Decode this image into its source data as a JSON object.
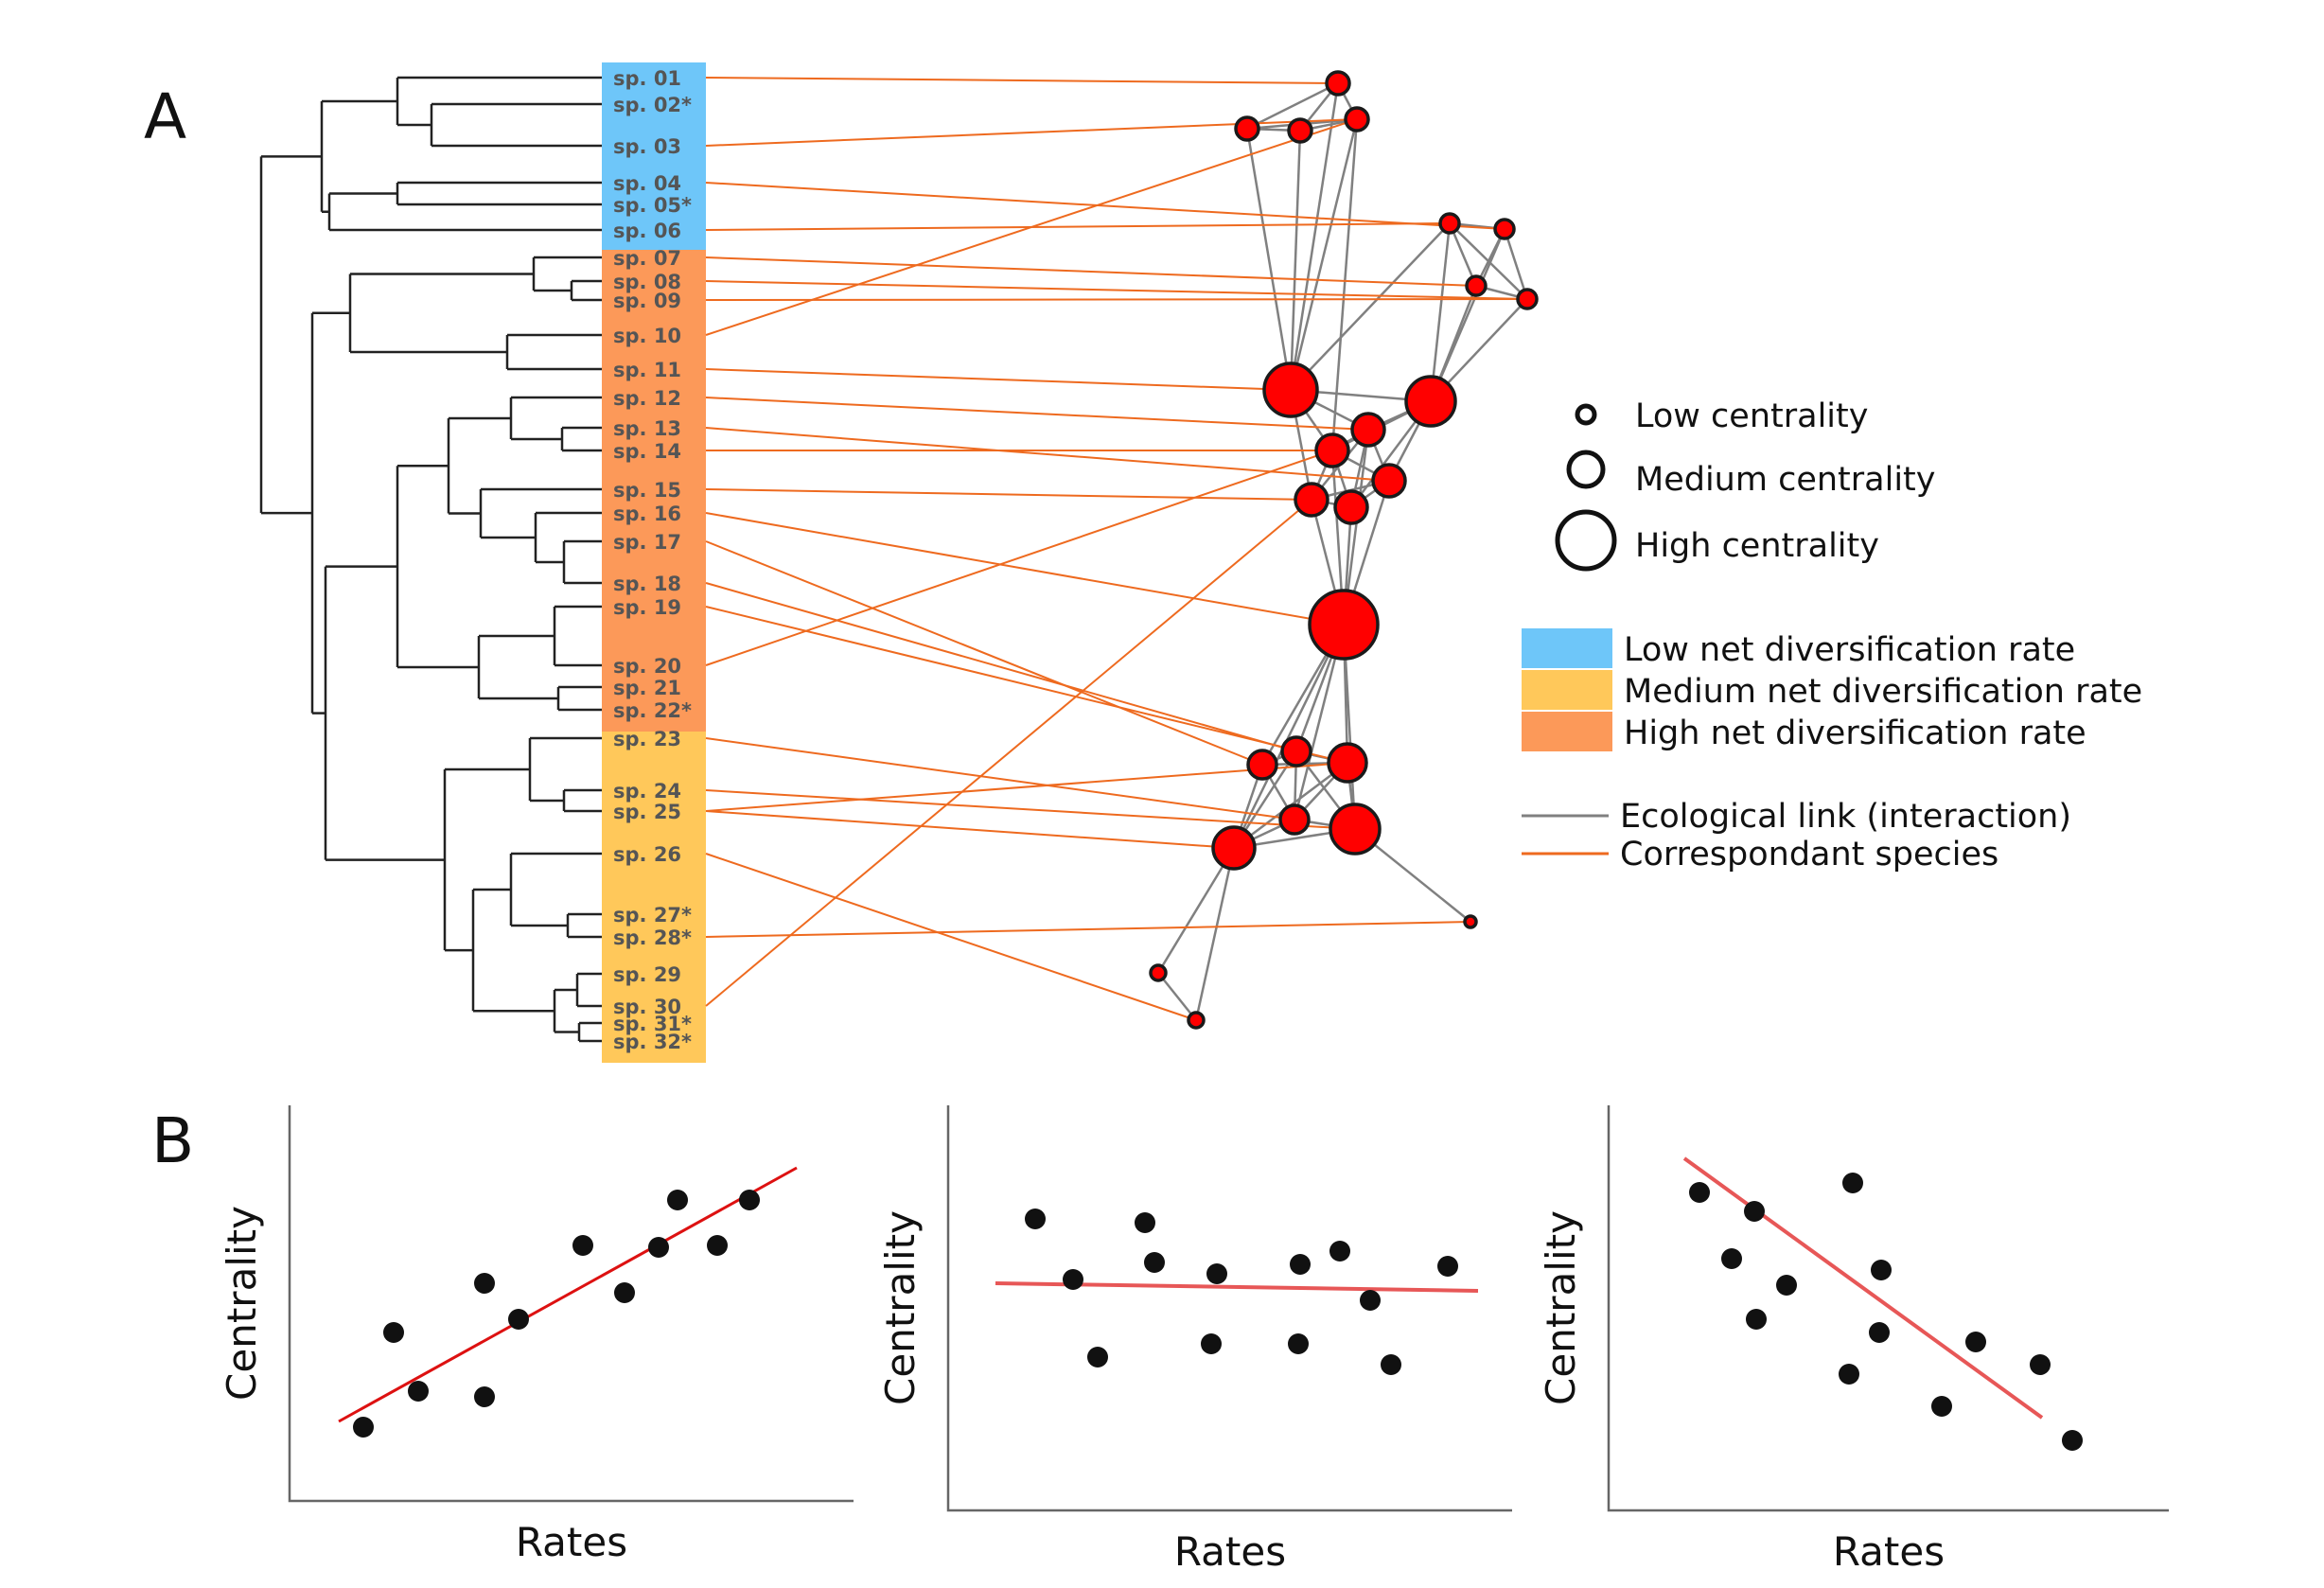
{
  "panel_a": {
    "letter": "A",
    "species": [
      {
        "label": "sp. 01",
        "group": "low"
      },
      {
        "label": "sp. 02*",
        "group": "low"
      },
      {
        "label": "sp. 03",
        "group": "low"
      },
      {
        "label": "sp. 04",
        "group": "low"
      },
      {
        "label": "sp. 05*",
        "group": "low"
      },
      {
        "label": "sp. 06",
        "group": "low"
      },
      {
        "label": "sp. 07",
        "group": "high"
      },
      {
        "label": "sp. 08",
        "group": "high"
      },
      {
        "label": "sp. 09",
        "group": "high"
      },
      {
        "label": "sp. 10",
        "group": "high"
      },
      {
        "label": "sp. 11",
        "group": "high"
      },
      {
        "label": "sp. 12",
        "group": "high"
      },
      {
        "label": "sp. 13",
        "group": "high"
      },
      {
        "label": "sp. 14",
        "group": "high"
      },
      {
        "label": "sp. 15",
        "group": "high"
      },
      {
        "label": "sp. 16",
        "group": "high"
      },
      {
        "label": "sp. 17",
        "group": "high"
      },
      {
        "label": "sp. 18",
        "group": "high"
      },
      {
        "label": "sp. 19",
        "group": "high"
      },
      {
        "label": "sp. 20",
        "group": "high"
      },
      {
        "label": "sp. 21",
        "group": "high"
      },
      {
        "label": "sp. 22*",
        "group": "high"
      },
      {
        "label": "sp. 23",
        "group": "medium"
      },
      {
        "label": "sp. 24",
        "group": "medium"
      },
      {
        "label": "sp. 25",
        "group": "medium"
      },
      {
        "label": "sp. 26",
        "group": "medium"
      },
      {
        "label": "sp. 27*",
        "group": "medium"
      },
      {
        "label": "sp. 28*",
        "group": "medium"
      },
      {
        "label": "sp. 29",
        "group": "medium"
      },
      {
        "label": "sp. 30",
        "group": "medium"
      },
      {
        "label": "sp. 31*",
        "group": "medium"
      },
      {
        "label": "sp. 32*",
        "group": "medium"
      }
    ],
    "legend": {
      "centrality": [
        {
          "label": "Low centrality",
          "level": "low"
        },
        {
          "label": "Medium centrality",
          "level": "medium"
        },
        {
          "label": "High centrality",
          "level": "high"
        }
      ],
      "rates": [
        {
          "label": "Low net diversification rate",
          "color": "#6ec6f9"
        },
        {
          "label": "Medium net diversification rate",
          "color": "#ffc85a"
        },
        {
          "label": "High net diversification rate",
          "color": "#fc9959"
        }
      ],
      "lines": [
        {
          "label": "Ecological link (interaction)",
          "color": "#808080"
        },
        {
          "label": "Correspondant species",
          "color": "#ee6a1f"
        }
      ]
    }
  },
  "panel_b": {
    "letter": "B",
    "plots": [
      {
        "xlabel": "Rates",
        "ylabel": "Centrality",
        "trend": "positive"
      },
      {
        "xlabel": "Rates",
        "ylabel": "Centrality",
        "trend": "none"
      },
      {
        "xlabel": "Rates",
        "ylabel": "Centrality",
        "trend": "negative"
      }
    ]
  },
  "colors": {
    "low_rate": "#6ec6f9",
    "medium_rate": "#ffc85a",
    "high_rate": "#fc9959",
    "node_fill": "#ff0000",
    "correspondence": "#ee6a1f",
    "ecological": "#808080",
    "trend_line": "#dd1111"
  }
}
